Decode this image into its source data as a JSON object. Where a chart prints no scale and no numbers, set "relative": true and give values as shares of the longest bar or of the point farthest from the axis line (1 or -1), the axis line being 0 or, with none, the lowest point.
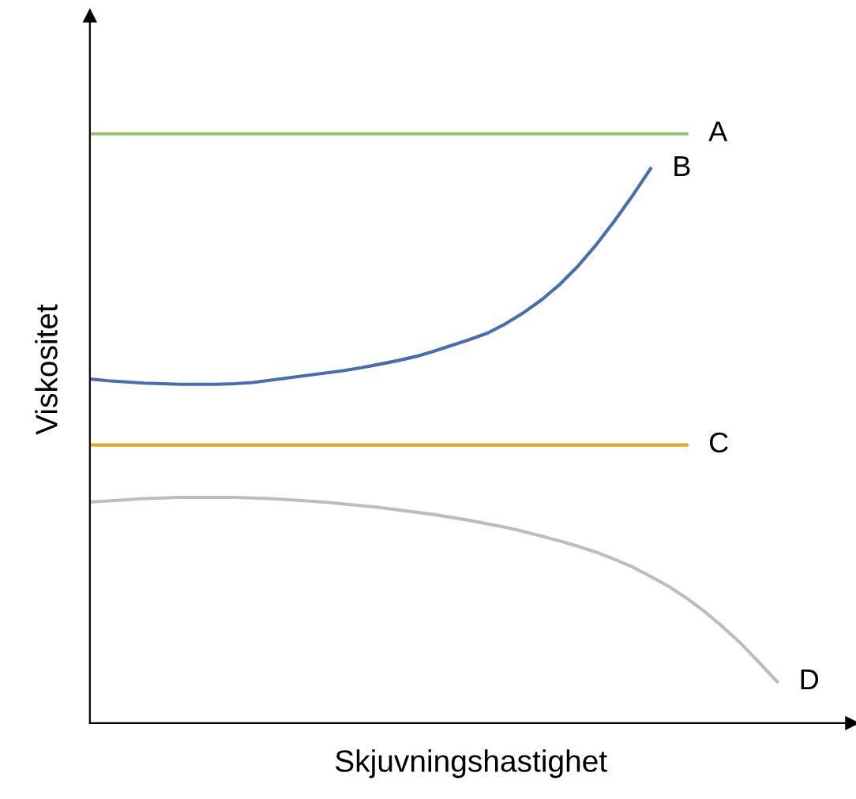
{
  "chart_data": {
    "type": "line",
    "relative": true,
    "xlabel": "Skjuvningshastighet",
    "ylabel": "Viskositet",
    "legend": false,
    "marker": "none",
    "line_style": "solid",
    "categories": [
      null,
      null,
      null,
      null,
      null,
      null,
      null,
      null,
      null,
      null,
      null,
      null,
      null,
      null,
      null,
      null,
      null,
      null,
      null,
      null,
      null,
      null,
      null,
      null,
      null,
      null,
      null,
      null,
      null,
      null,
      null,
      null,
      null,
      null,
      null,
      null,
      null,
      null,
      null
    ],
    "series": [
      {
        "name": "A",
        "color": "#92c46d",
        "values": [
          1,
          1,
          1,
          1,
          1,
          1,
          1,
          1,
          1,
          1,
          1,
          1,
          1,
          1,
          1,
          1,
          1,
          1,
          1,
          1,
          1,
          1,
          1,
          1,
          1,
          1,
          1,
          1,
          1,
          1,
          1,
          1,
          1,
          1,
          null,
          null,
          null,
          null,
          null
        ]
      },
      {
        "name": "B",
        "color": "#4a6cb3",
        "values": [
          0.584,
          0.581,
          0.579,
          0.577,
          0.576,
          0.575,
          0.575,
          0.575,
          0.576,
          0.578,
          0.582,
          0.586,
          0.59,
          0.594,
          0.598,
          0.603,
          0.609,
          0.615,
          0.622,
          0.631,
          0.641,
          0.651,
          0.662,
          0.678,
          0.697,
          0.719,
          0.745,
          0.776,
          0.812,
          0.852,
          0.895,
          0.941,
          null,
          null,
          null,
          null,
          null,
          null,
          null
        ]
      },
      {
        "name": "C",
        "color": "#e6a82a",
        "values": [
          0.472,
          0.472,
          0.472,
          0.472,
          0.472,
          0.472,
          0.472,
          0.472,
          0.472,
          0.472,
          0.472,
          0.472,
          0.472,
          0.472,
          0.472,
          0.472,
          0.472,
          0.472,
          0.472,
          0.472,
          0.472,
          0.472,
          0.472,
          0.472,
          0.472,
          0.472,
          0.472,
          0.472,
          0.472,
          0.472,
          0.472,
          0.472,
          0.472,
          0.472,
          null,
          null,
          null,
          null,
          null
        ]
      },
      {
        "name": "D",
        "color": "#bdbdbd",
        "values": [
          0.375,
          0.377,
          0.379,
          0.381,
          0.382,
          0.383,
          0.383,
          0.383,
          0.383,
          0.382,
          0.381,
          0.379,
          0.377,
          0.375,
          0.372,
          0.369,
          0.366,
          0.362,
          0.358,
          0.354,
          0.349,
          0.344,
          0.338,
          0.332,
          0.325,
          0.317,
          0.309,
          0.3,
          0.29,
          0.278,
          0.265,
          0.249,
          0.232,
          0.212,
          0.189,
          0.163,
          0.135,
          0.103,
          0.07
        ]
      }
    ]
  }
}
